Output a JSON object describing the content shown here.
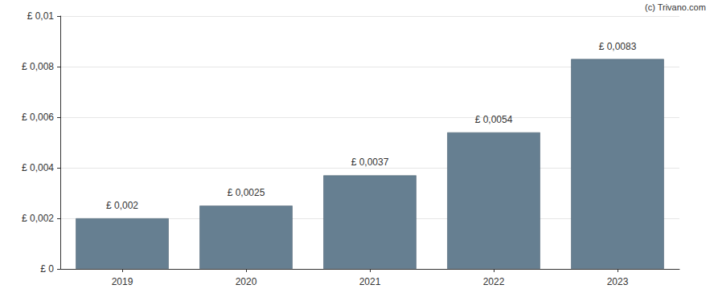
{
  "chart_data": {
    "type": "bar",
    "categories": [
      "2019",
      "2020",
      "2021",
      "2022",
      "2023"
    ],
    "values": [
      0.002,
      0.0025,
      0.0037,
      0.0054,
      0.0083
    ],
    "value_labels": [
      "£ 0,002",
      "£ 0,0025",
      "£ 0,0037",
      "£ 0,0054",
      "£ 0,0083"
    ],
    "data_labels": true,
    "color": "#667f91",
    "ylim": [
      0,
      0.01
    ],
    "yticks": [
      {
        "value": 0,
        "label": "£ 0"
      },
      {
        "value": 0.002,
        "label": "£ 0,002"
      },
      {
        "value": 0.004,
        "label": "£ 0,004"
      },
      {
        "value": 0.006,
        "label": "£ 0,006"
      },
      {
        "value": 0.008,
        "label": "£ 0,008"
      },
      {
        "value": 0.01,
        "label": "£ 0,01"
      }
    ],
    "grid": true,
    "annotations": [
      "(c) Trivano.com"
    ]
  }
}
